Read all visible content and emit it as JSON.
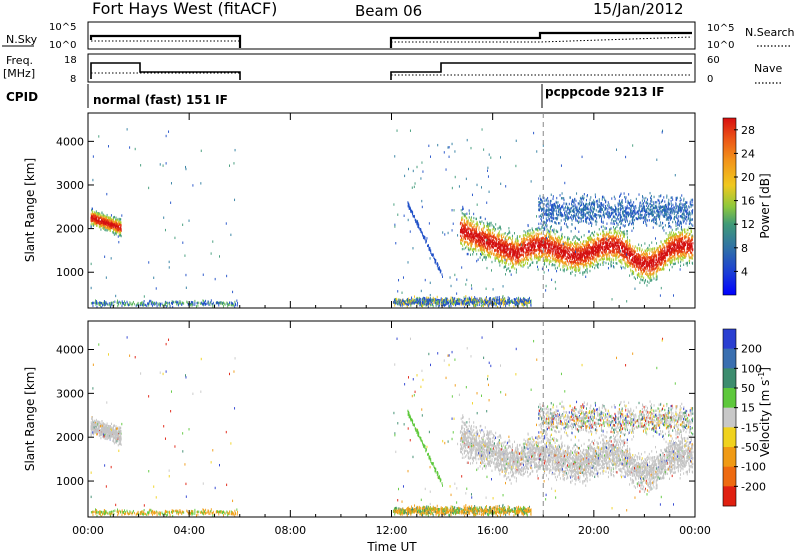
{
  "header": {
    "title": "Fort Hays West (fitACF)",
    "beam": "Beam 06",
    "date": "15/Jan/2012"
  },
  "status_panels": {
    "nsky_label": "N.Sky",
    "nsky_ticks": [
      "10^5",
      "10^0"
    ],
    "nsearch_label": "N.Search",
    "nsearch_ticks": [
      "10^5",
      "10^0"
    ],
    "freq_label": "Freq.",
    "freq_unit": "[MHz]",
    "freq_ticks": [
      "18",
      "8"
    ],
    "nave_label": "Nave",
    "nave_ticks": [
      "60",
      "0"
    ],
    "cpid_label": "CPID",
    "cpid_segments": [
      "normal (fast) 151 IF",
      "pcppcode 9213 IF"
    ]
  },
  "chart_data": [
    {
      "type": "heatmap",
      "name": "power",
      "xlabel": "",
      "ylabel": "Slant Range [km]",
      "x_ticks": [
        "00:00",
        "04:00",
        "08:00",
        "12:00",
        "16:00",
        "20:00",
        "00:00"
      ],
      "x_range_hours": [
        0,
        24
      ],
      "y_ticks": [
        1000,
        2000,
        3000,
        4000
      ],
      "y_range_km": [
        180,
        4650
      ],
      "colorbar": {
        "label": "Power [dB]",
        "ticks": [
          4,
          8,
          12,
          16,
          20,
          24,
          28
        ],
        "range": [
          0,
          30
        ],
        "colors": [
          "#0000ff",
          "#2050c8",
          "#2f7da0",
          "#3f9a78",
          "#5ab45a",
          "#a8cf30",
          "#f0c81e",
          "#f29b1c",
          "#ee6a16",
          "#e63a12",
          "#d41010"
        ]
      },
      "observation_gaps_hours": [
        [
          6,
          12
        ]
      ],
      "marker_hour": 18
    },
    {
      "type": "heatmap",
      "name": "velocity",
      "xlabel": "Time UT",
      "ylabel": "Slant Range [km]",
      "x_ticks": [
        "00:00",
        "04:00",
        "08:00",
        "12:00",
        "16:00",
        "20:00",
        "00:00"
      ],
      "x_range_hours": [
        0,
        24
      ],
      "y_ticks": [
        1000,
        2000,
        3000,
        4000
      ],
      "y_range_km": [
        180,
        4650
      ],
      "colorbar": {
        "label": "Velocity [m s",
        "label_sup": "-1",
        "label_end": "]",
        "ticks": [
          200,
          100,
          50,
          15,
          -15,
          -50,
          -100,
          -200
        ],
        "colors": [
          "#2a3fd1",
          "#3a6fb0",
          "#3c8c6e",
          "#5ec83c",
          "#c8c8c8",
          "#f0d21e",
          "#f09a14",
          "#ee6a10",
          "#e02010"
        ]
      },
      "observation_gaps_hours": [
        [
          6,
          12
        ]
      ],
      "marker_hour": 18
    }
  ]
}
